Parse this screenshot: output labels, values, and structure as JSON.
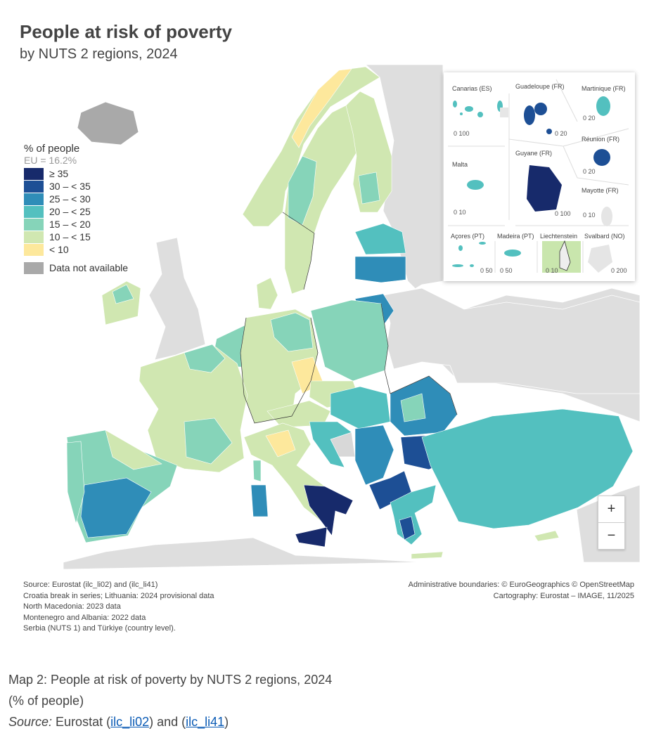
{
  "header": {
    "title": "People at risk of poverty",
    "subtitle": "by NUTS 2 regions, 2024"
  },
  "legend": {
    "title": "% of people",
    "eu_value": "EU = 16.2%",
    "classes": [
      {
        "label": "≥ 35",
        "color": "#172a6b"
      },
      {
        "label": "30 – < 35",
        "color": "#1d4f95"
      },
      {
        "label": "25 – < 30",
        "color": "#2f8db8"
      },
      {
        "label": "20 – < 25",
        "color": "#53c0bf"
      },
      {
        "label": "15 – < 20",
        "color": "#86d4b9"
      },
      {
        "label": "10 – < 15",
        "color": "#d0e7b1"
      },
      {
        "label": "< 10",
        "color": "#fde89c"
      }
    ],
    "not_available": {
      "label": "Data not available",
      "color": "#a9a9a9"
    }
  },
  "insets": {
    "canarias": {
      "label": "Canarias (ES)",
      "scale": "0  100"
    },
    "guadeloupe": {
      "label": "Guadeloupe (FR)",
      "scale": "0  20"
    },
    "martinique": {
      "label": "Martinique (FR)",
      "scale": "0  20"
    },
    "malta": {
      "label": "Malta",
      "scale": "0  10"
    },
    "guyane": {
      "label": "Guyane (FR)",
      "scale": "0   100"
    },
    "reunion": {
      "label": "Réunion (FR)",
      "scale": "0  20"
    },
    "mayotte": {
      "label": "Mayotte (FR)",
      "scale": "0 10"
    },
    "acores": {
      "label": "Açores (PT)",
      "scale": "0  50"
    },
    "madeira": {
      "label": "Madeira (PT)",
      "scale": "0     50"
    },
    "liechtenstein": {
      "label": "Liechtenstein",
      "scale": "0  10"
    },
    "svalbard": {
      "label": "Svalbard (NO)",
      "scale": "0   200"
    }
  },
  "zoom_controls": {
    "zoom_in": "+",
    "zoom_out": "−"
  },
  "notes": [
    "Source: Eurostat (ilc_li02) and (ilc_li41)",
    "Croatia break in series; Lithuania: 2024 provisional data",
    "North Macedonia: 2023 data",
    "Montenegro and Albania: 2022 data",
    "Serbia (NUTS 1) and Türkiye (country level)."
  ],
  "credits": [
    "Administrative boundaries: © EuroGeographics © OpenStreetMap",
    "Cartography: Eurostat – IMAGE, 11/2025"
  ],
  "caption": {
    "line1": "Map 2: People at risk of poverty by NUTS 2 regions, 2024",
    "line2": "(% of people)",
    "source_label": "Source:",
    "source_pre": " Eurostat (",
    "link1": "ilc_li02",
    "source_mid": ") and (",
    "link2": "ilc_li41",
    "source_post": ")"
  }
}
